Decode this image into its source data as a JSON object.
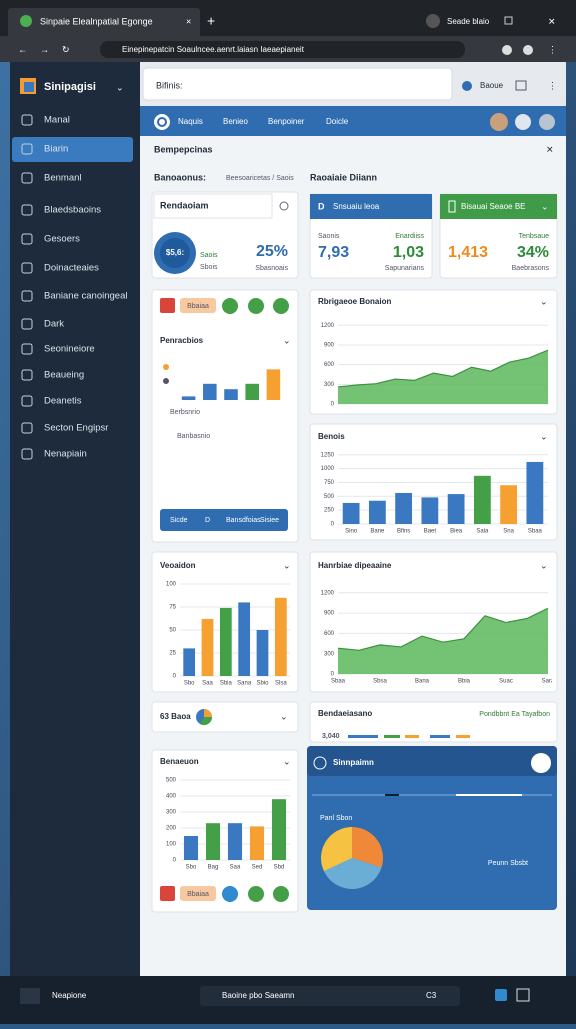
{
  "browser": {
    "tab_title": "Sinpaie Elealnpatial Egonge",
    "address": "Einepinepatcin Soaulncee.aenrt.laiasn Iaeaepianeit",
    "profile": "Seade blaio"
  },
  "sidebar": {
    "logo": "Sinipagisi",
    "items": [
      "Manal",
      "Biarin",
      "Benmanl",
      "Blaedsbaoins",
      "Gesoers",
      "Doinacteaies",
      "Baniane canoingeal",
      "Dark",
      "Seonineiore",
      "Beaueing",
      "Deanetis",
      "Secton Engipsr",
      "Nenapiain"
    ]
  },
  "topbar": {
    "search": "Bifinis:",
    "user": "Baoue"
  },
  "nav": [
    "Naquis",
    "Benieo",
    "Benpoiner",
    "Doicle"
  ],
  "panel": {
    "title": "Bempepcinas",
    "section_left": "Banoaonus:",
    "section_link": "Beesoaricetas / Saois",
    "section_right": "Raoaiaie Diiann"
  },
  "cards": {
    "summary": {
      "title": "Rendaoiam",
      "badge": "$5,6:",
      "label1": "Saois",
      "label2": "Sbois",
      "value": "25%",
      "caption": "Sbasnoais"
    },
    "blue": {
      "title": "Snsuaiu leoa",
      "label_left": "Saonis",
      "value_left": "7,93",
      "label_right": "Enardiiss",
      "value_right": "1,03",
      "caption": "Sapunarians"
    },
    "green": {
      "title": "Bisauai Seaoe BE",
      "value_left": "1,413",
      "label_right": "Tenbsaue",
      "value_right": "34%",
      "caption": "Baebrasons"
    },
    "actions": {
      "pill": "Bbaiaa",
      "note1": "Berbsnrio",
      "note2": "Banbasnio",
      "buttons": [
        "Sicde",
        "D",
        "Bansdfoias",
        "Sisiee"
      ]
    },
    "mini": {
      "title": "63 Baoa"
    },
    "strip": {
      "title": "Bendaeiasano",
      "link": "Pondbbnt Ea Tayafbon",
      "value": "3,040"
    },
    "promo": {
      "title": "Sinnpaimn",
      "label": "Panl Sbon",
      "caption": "Peunn Sbsbt"
    },
    "bottom_actions": {
      "pill": "Bbaiaa"
    }
  },
  "charts": [
    {
      "type": "bar",
      "title": "Penracbios",
      "ylim": [
        0,
        20
      ],
      "values": [
        2,
        9,
        6,
        9,
        17
      ],
      "colors": [
        "#3a78c2",
        "#3a78c2",
        "#3a78c2",
        "#43a047",
        "#f5a030"
      ]
    },
    {
      "type": "area",
      "title": "Rbrigaeoe Bonaion",
      "ylim": [
        0,
        1250
      ],
      "yticks": [
        0,
        300,
        600,
        900,
        1200
      ],
      "values": [
        260,
        290,
        310,
        380,
        360,
        470,
        420,
        560,
        500,
        640,
        700,
        820
      ],
      "color": "#5cb85c"
    },
    {
      "type": "bar",
      "title": "Benois",
      "ylim": [
        0,
        1300
      ],
      "yticks": [
        0,
        250,
        500,
        750,
        1000,
        1250
      ],
      "categories": [
        "Sino",
        "Bane",
        "Bfins",
        "Baet",
        "Biea",
        "Saia",
        "Sna",
        "Sbaa"
      ],
      "values": [
        380,
        420,
        560,
        480,
        540,
        870,
        700,
        1120
      ],
      "colors": [
        "#3a78c2",
        "#3a78c2",
        "#3a78c2",
        "#3a78c2",
        "#3a78c2",
        "#43a047",
        "#f5a030",
        "#3a78c2"
      ]
    },
    {
      "type": "bar",
      "title": "Veoaidon",
      "ylim": [
        0,
        100
      ],
      "yticks": [
        0,
        25,
        50,
        75,
        100
      ],
      "categories": [
        "Sbo",
        "Saa",
        "Sbia",
        "Sana",
        "Sbio",
        "Slsa"
      ],
      "values": [
        30,
        62,
        74,
        80,
        50,
        85
      ],
      "colors": [
        "#3a78c2",
        "#f5a030",
        "#43a047",
        "#3a78c2",
        "#3a78c2",
        "#f5a030"
      ]
    },
    {
      "type": "area",
      "title": "Hanrbiae dipeaaine",
      "ylim": [
        0,
        1300
      ],
      "yticks": [
        0,
        300,
        600,
        900,
        1200
      ],
      "categories": [
        "Sbaa",
        null,
        "Sbsa",
        null,
        "Bana",
        null,
        "Bbia",
        null,
        "Suac",
        null,
        "Sara"
      ],
      "values": [
        380,
        350,
        430,
        400,
        560,
        470,
        520,
        860,
        760,
        820,
        970
      ],
      "color": "#5cb85c"
    },
    {
      "type": "bar",
      "title": "Benaeuon",
      "ylim": [
        0,
        500
      ],
      "yticks": [
        0,
        100,
        200,
        300,
        400,
        500
      ],
      "categories": [
        "Sbo",
        "Bag",
        "Saa",
        "Sed",
        "Sbd"
      ],
      "values": [
        150,
        230,
        230,
        210,
        380
      ],
      "colors": [
        "#3a78c2",
        "#43a047",
        "#3a78c2",
        "#f5a030",
        "#43a047"
      ]
    },
    {
      "type": "pie",
      "values": [
        30,
        38,
        32
      ],
      "colors": [
        "#f0883a",
        "#6aaed6",
        "#f5c242"
      ]
    }
  ],
  "taskbar": {
    "app": "Neapione",
    "search": "Baoine pbo Saeamn",
    "badge": "C3"
  }
}
